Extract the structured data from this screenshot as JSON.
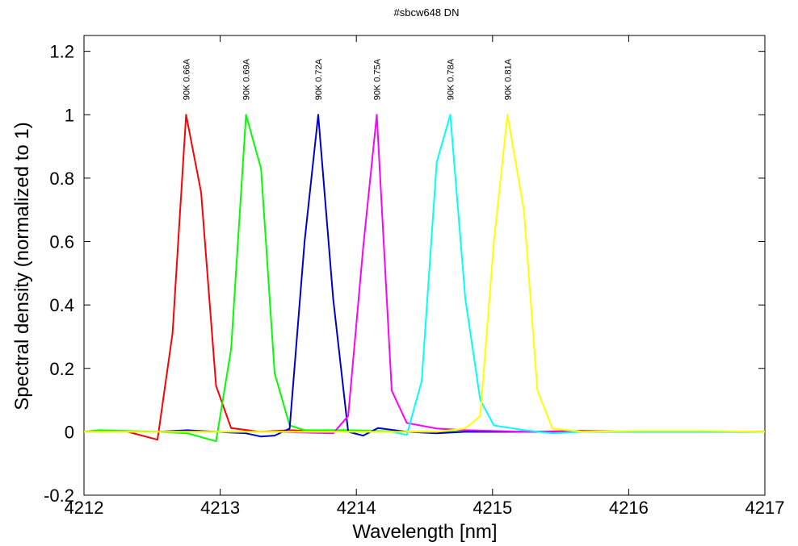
{
  "chart_data": {
    "type": "line",
    "title": "#sbcw648 DN",
    "xlabel": "Wavelength [nm]",
    "ylabel": "Spectral density (normalized to 1)",
    "xlim": [
      4212,
      4217
    ],
    "ylim": [
      -0.2,
      1.25
    ],
    "xticks": [
      4212,
      4213,
      4214,
      4215,
      4216,
      4217
    ],
    "xtick_labels": [
      "4212",
      "4213",
      "4214",
      "4215",
      "4216",
      "4217"
    ],
    "yticks": [
      -0.2,
      0,
      0.2,
      0.4,
      0.6,
      0.8,
      1,
      1.2
    ],
    "ytick_labels": [
      "-0.2",
      "0",
      "0.2",
      "0.4",
      "0.6",
      "0.8",
      "1",
      "1.2"
    ],
    "grid": false,
    "series": [
      {
        "name": "90K 0.66A",
        "color": "#ff0000",
        "peak_x": 4212.75,
        "x": [
          4212,
          4212.11,
          4212.32,
          4212.54,
          4212.65,
          4212.75,
          4212.86,
          4212.97,
          4213.08,
          4213.29,
          4213.51,
          4213.72,
          4213.94,
          4214.37,
          4214.8,
          4215.23,
          4215.66,
          4216.09,
          4216.52,
          4217
        ],
        "y": [
          0,
          0,
          0,
          -0.025,
          0.31,
          1.0,
          0.755,
          0.145,
          0.012,
          0.0,
          0.005,
          0.002,
          0,
          0,
          0,
          0,
          0.003,
          0,
          0,
          0
        ]
      },
      {
        "name": "90K 0.69A",
        "color": "#00ff00",
        "peak_x": 4213.19,
        "x": [
          4212,
          4212.11,
          4212.54,
          4212.76,
          4212.97,
          4213.08,
          4213.19,
          4213.3,
          4213.4,
          4213.51,
          4213.62,
          4213.94,
          4214.37,
          4214.8,
          4215.23,
          4215.66,
          4216.09,
          4216.52,
          4217
        ],
        "y": [
          0,
          0.005,
          0,
          -0.005,
          -0.03,
          0.26,
          1.0,
          0.83,
          0.185,
          0.02,
          0.005,
          0.005,
          0,
          0,
          0,
          0,
          0,
          0,
          0
        ],
        "extra": []
      },
      {
        "name": "90K 0.72A",
        "color": "#0000cc",
        "peak_x": 4213.72,
        "x": [
          4212,
          4212.54,
          4212.76,
          4212.97,
          4213.19,
          4213.3,
          4213.4,
          4213.51,
          4213.62,
          4213.72,
          4213.83,
          4213.94,
          4214.05,
          4214.16,
          4214.37,
          4214.59,
          4214.8,
          4215.23,
          4215.66,
          4216.09,
          4216.52,
          4217
        ],
        "y": [
          0,
          0,
          0.005,
          0,
          -0.005,
          -0.015,
          -0.012,
          0.01,
          0.6,
          1.0,
          0.42,
          0.0,
          -0.012,
          0.012,
          0,
          -0.005,
          0,
          0,
          0,
          0,
          0,
          0
        ]
      },
      {
        "name": "90K 0.75A",
        "color": "#ff00ff",
        "peak_x": 4214.15,
        "x": [
          4212,
          4212.54,
          4212.97,
          4213.4,
          4213.83,
          4213.94,
          4214.05,
          4214.15,
          4214.26,
          4214.37,
          4214.59,
          4214.8,
          4215.23,
          4215.66,
          4216.09,
          4216.52,
          4217
        ],
        "y": [
          0,
          0,
          0,
          0,
          -0.005,
          0.05,
          0.58,
          1.0,
          0.13,
          0.028,
          0.01,
          0.005,
          0,
          0,
          0,
          0,
          0
        ]
      },
      {
        "name": "90K 0.78A",
        "color": "#00ffff",
        "peak_x": 4214.69,
        "x": [
          4212,
          4212.54,
          4212.97,
          4213.4,
          4213.83,
          4214.26,
          4214.37,
          4214.48,
          4214.59,
          4214.69,
          4214.8,
          4214.91,
          4215.01,
          4215.23,
          4215.44,
          4215.66,
          4216.09,
          4216.52,
          4217
        ],
        "y": [
          0,
          0,
          0,
          0,
          0,
          0,
          -0.01,
          0.16,
          0.85,
          1.0,
          0.42,
          0.1,
          0.02,
          0.005,
          -0.005,
          0,
          0,
          0,
          0
        ]
      },
      {
        "name": "90K 0.81A",
        "color": "#ffff00",
        "peak_x": 4215.11,
        "x": [
          4212,
          4212.54,
          4212.97,
          4213.4,
          4213.83,
          4214.26,
          4214.59,
          4214.8,
          4214.91,
          4215.01,
          4215.11,
          4215.23,
          4215.33,
          4215.44,
          4215.66,
          4216.09,
          4216.52,
          4217
        ],
        "y": [
          0,
          0,
          0,
          0,
          0,
          0,
          0,
          0.01,
          0.05,
          0.6,
          1.0,
          0.7,
          0.13,
          0.01,
          0.0,
          0.003,
          0.003,
          0
        ]
      }
    ]
  }
}
